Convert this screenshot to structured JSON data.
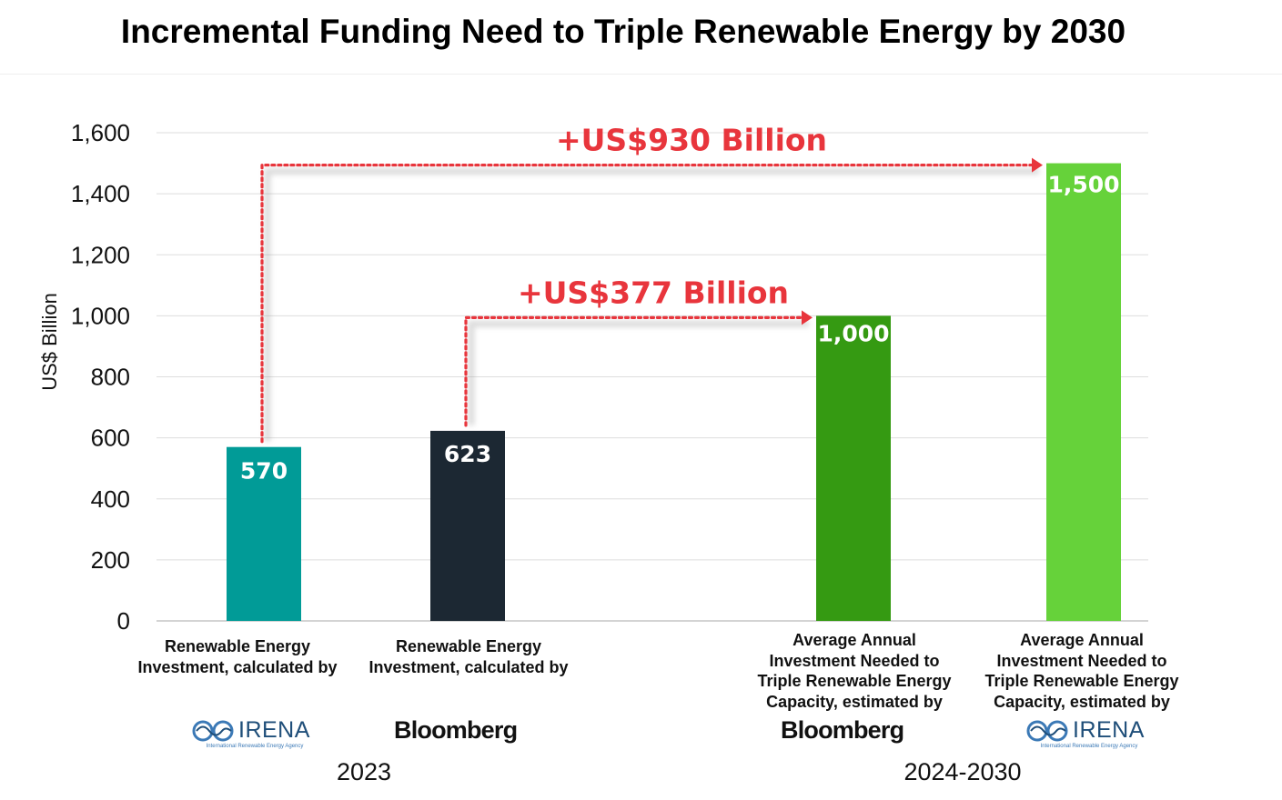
{
  "title": "Incremental Funding Need to Triple Renewable Energy by 2030",
  "chart_data": {
    "type": "bar",
    "ylabel": "US$ Billion",
    "ylim": [
      0,
      1600
    ],
    "yticks": [
      "0",
      "200",
      "400",
      "600",
      "800",
      "1,000",
      "1,200",
      "1,400",
      "1,600"
    ],
    "grid": true,
    "bars": [
      {
        "value": 570,
        "label": "570",
        "color": "#019b97",
        "category_lines": [
          "Renewable Energy",
          "Investment, calculated by"
        ],
        "source": "IRENA"
      },
      {
        "value": 623,
        "label": "623",
        "color": "#1c2833",
        "category_lines": [
          "Renewable Energy",
          "Investment, calculated by"
        ],
        "source": "Bloomberg"
      },
      {
        "value": 1000,
        "label": "1,000",
        "color": "#359a12",
        "category_lines": [
          "Average Annual",
          "Investment Needed to",
          "Triple Renewable Energy",
          "Capacity, estimated by"
        ],
        "source": "Bloomberg"
      },
      {
        "value": 1500,
        "label": "1,500",
        "color": "#66d23a",
        "category_lines": [
          "Average Annual",
          "Investment Needed to",
          "Triple Renewable Energy",
          "Capacity, estimated by"
        ],
        "source": "IRENA"
      }
    ],
    "annotations": [
      {
        "text": "+US$930 Billion",
        "from_bar": 0,
        "to_bar": 3,
        "level": 1500
      },
      {
        "text": "+US$377 Billion",
        "from_bar": 1,
        "to_bar": 2,
        "level": 1000
      }
    ],
    "groups": [
      "2023",
      "2024-2030"
    ],
    "colors": {
      "arrow": "#e8353c",
      "grid": "#dddddd"
    }
  },
  "logos": {
    "irena_name": "IRENA",
    "irena_subtitle": "International Renewable Energy Agency",
    "bloomberg_name": "Bloomberg"
  }
}
